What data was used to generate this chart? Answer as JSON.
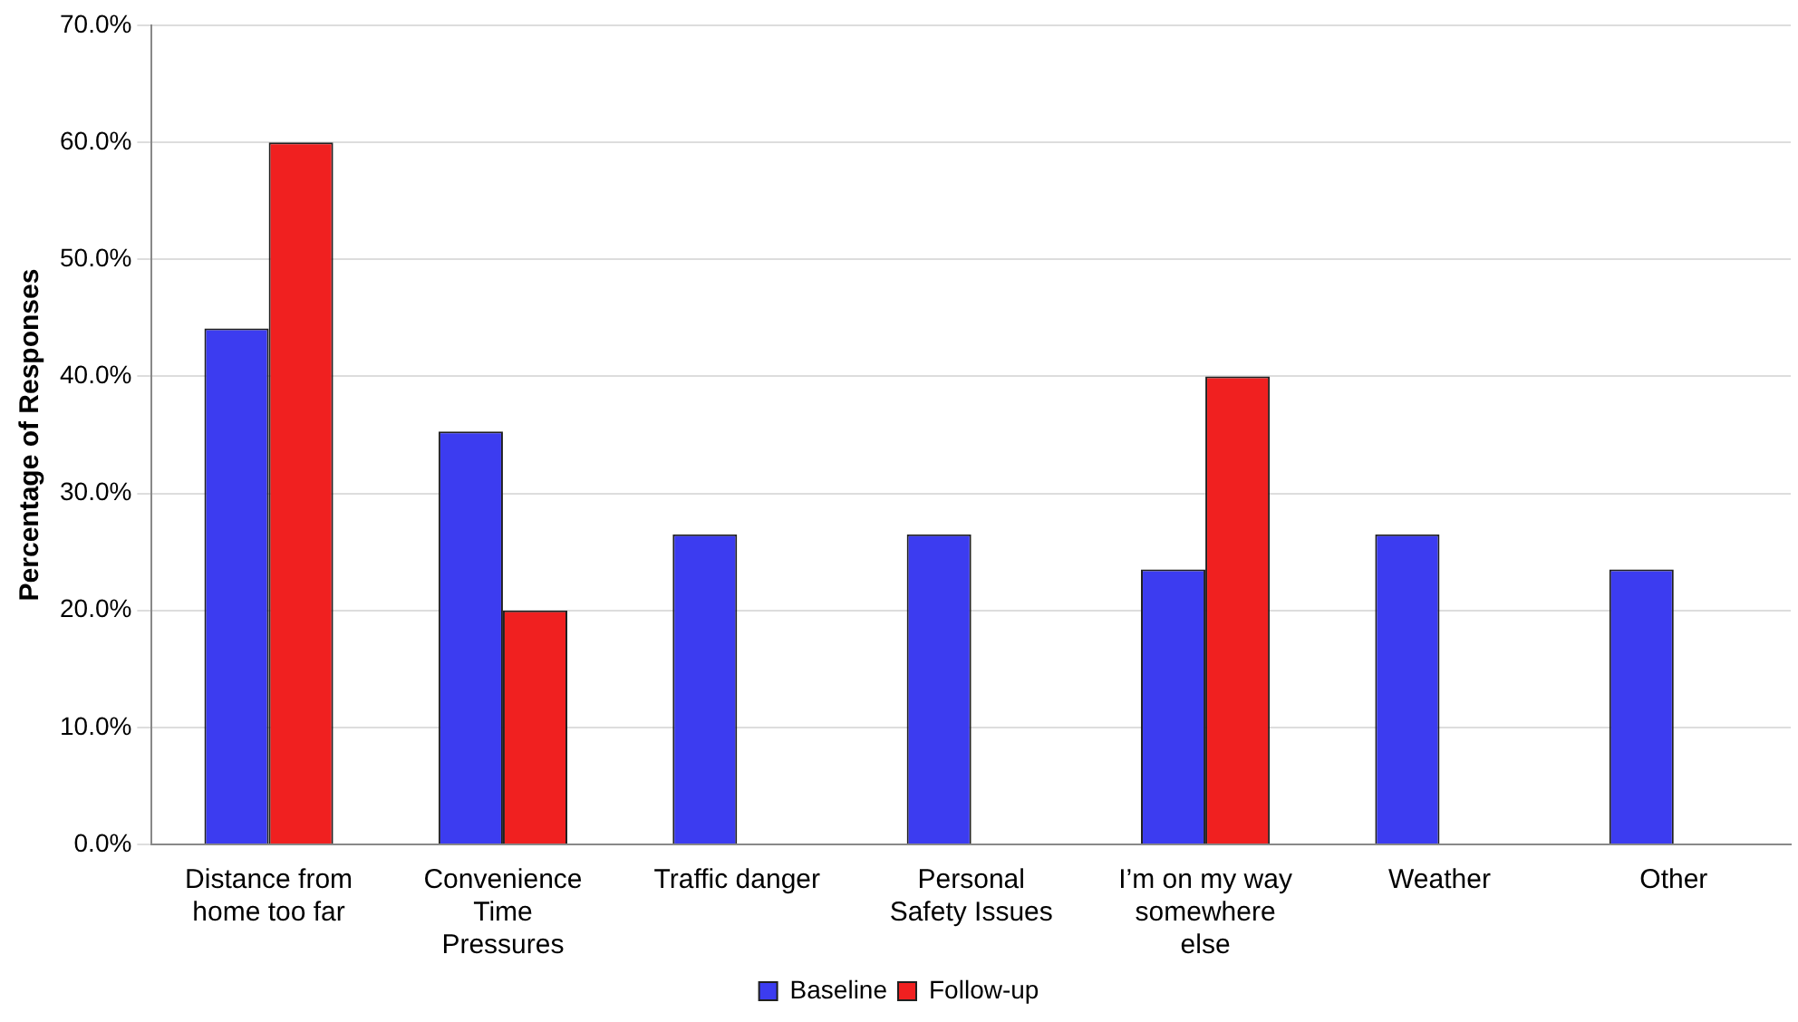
{
  "chart_data": {
    "type": "bar",
    "ylabel": "Percentage of Responses",
    "categories": [
      "Distance from home too far",
      "Convenience Time Pressures",
      "Traffic danger",
      "Personal Safety Issues",
      "I’m on my way somewhere else",
      "Weather",
      "Other"
    ],
    "series": [
      {
        "name": "Baseline",
        "color": "#3c3cf0",
        "values": [
          44.1,
          35.3,
          26.5,
          26.5,
          23.5,
          26.5,
          23.5
        ]
      },
      {
        "name": "Follow-up",
        "color": "#f02020",
        "values": [
          60,
          20,
          0,
          0,
          40,
          0,
          0
        ]
      }
    ],
    "ylim": [
      0,
      70
    ],
    "yticks": [
      {
        "value": 0,
        "label": "0.0%"
      },
      {
        "value": 10,
        "label": "10.0%"
      },
      {
        "value": 20,
        "label": "20.0%"
      },
      {
        "value": 30,
        "label": "30.0%"
      },
      {
        "value": 40,
        "label": "40.0%"
      },
      {
        "value": 50,
        "label": "50.0%"
      },
      {
        "value": 60,
        "label": "60.0%"
      },
      {
        "value": 70,
        "label": "70.0%"
      }
    ],
    "grid": "y",
    "legend": "bottom"
  }
}
